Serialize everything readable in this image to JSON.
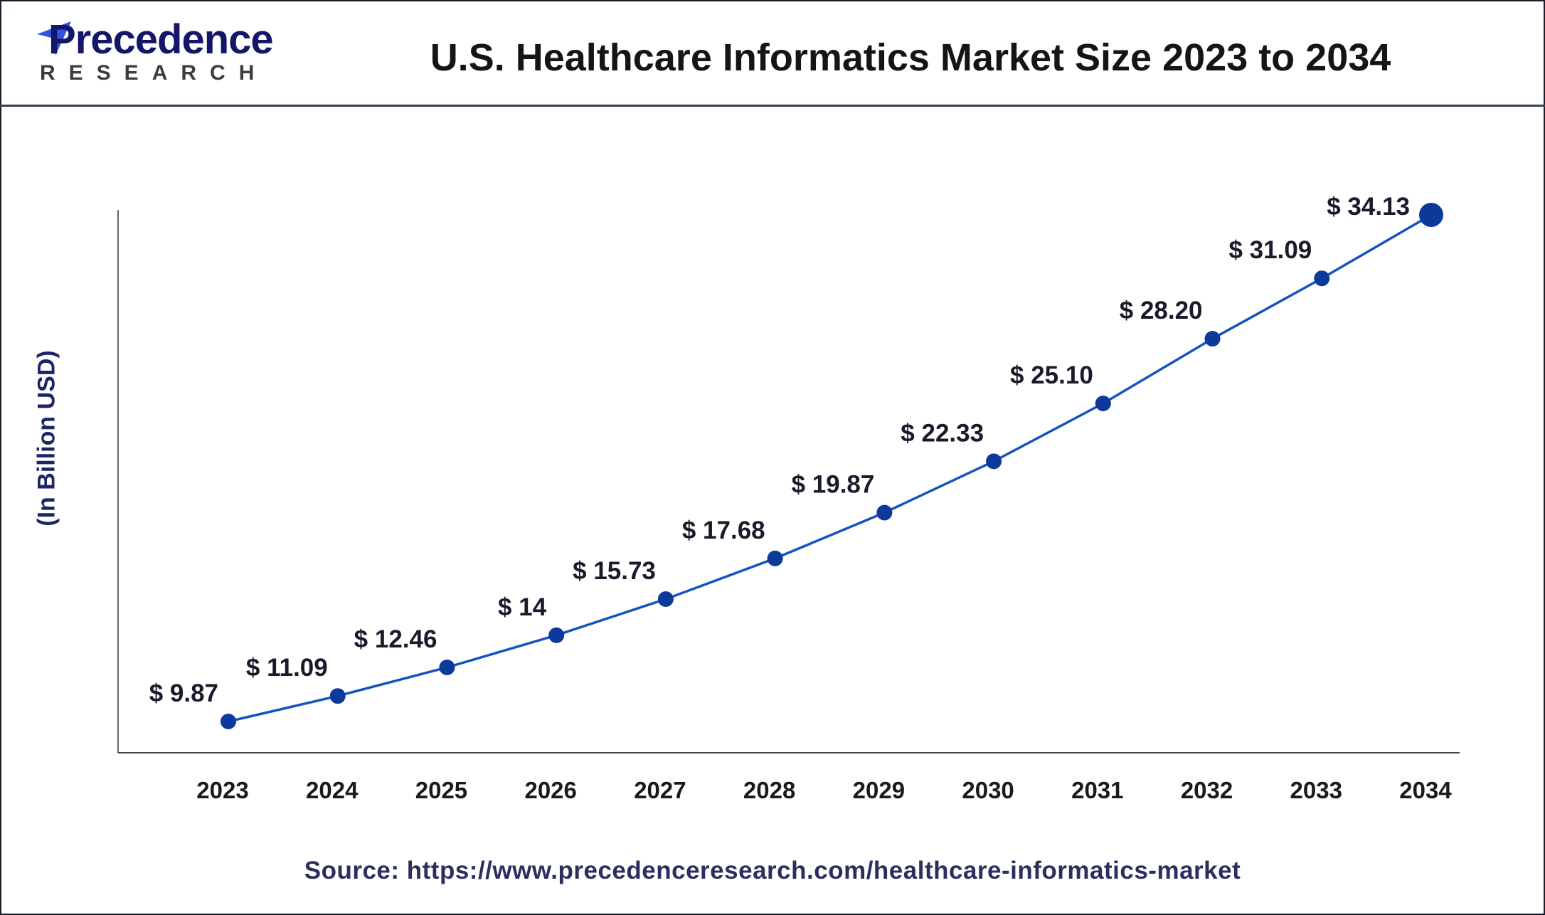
{
  "header": {
    "logo_text": "Precedence",
    "logo_sub": "RESEARCH",
    "title": "U.S. Healthcare Informatics Market Size 2023 to 2034"
  },
  "source": "Source: https://www.precedenceresearch.com/healthcare-informatics-market",
  "colors": {
    "line": "#1553c0",
    "marker": "#0d3a9a",
    "axis": "#555555",
    "ylabel": "#1f2466"
  },
  "chart_data": {
    "type": "line",
    "title": "U.S. Healthcare Informatics Market Size 2023 to 2034",
    "xlabel": "",
    "ylabel": "(In Billion USD)",
    "categories": [
      "2023",
      "2024",
      "2025",
      "2026",
      "2027",
      "2028",
      "2029",
      "2030",
      "2031",
      "2032",
      "2033",
      "2034"
    ],
    "values": [
      9.87,
      11.09,
      12.46,
      14,
      15.73,
      17.68,
      19.87,
      22.33,
      25.1,
      28.2,
      31.09,
      34.13
    ],
    "data_labels": [
      "$ 9.87",
      "$ 11.09",
      "$ 12.46",
      "$ 14",
      "$ 15.73",
      "$ 17.68",
      "$ 19.87",
      "$ 22.33",
      "$ 25.10",
      "$ 28.20",
      "$ 31.09",
      "$ 34.13"
    ],
    "grid": false,
    "legend": "none"
  }
}
